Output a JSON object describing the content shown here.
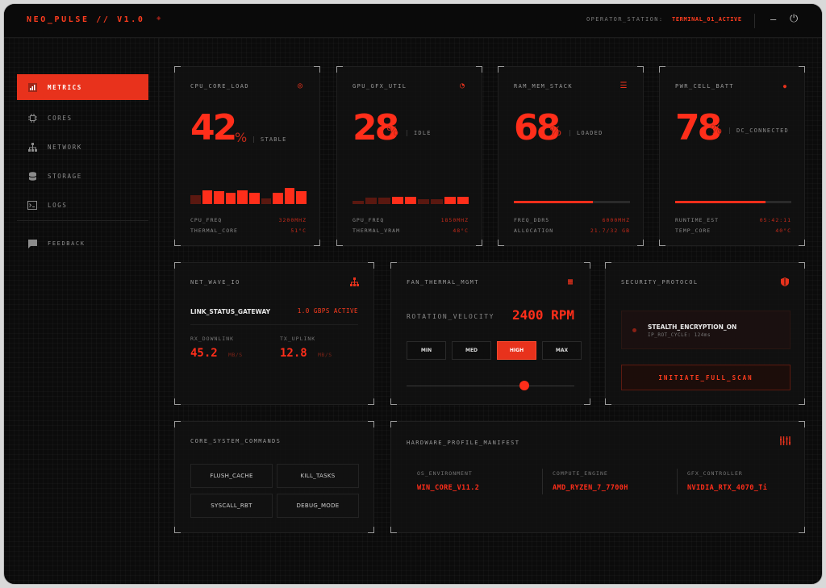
{
  "app": {
    "brand": "NEO_PULSE // V1.0",
    "operator_label": "OPERATOR_STATION:",
    "operator_value": "TERMINAL_01_ACTIVE"
  },
  "sidebar": {
    "items": [
      {
        "label": "METRICS",
        "icon": "signal-bars-icon",
        "active": true
      },
      {
        "label": "CORES",
        "icon": "chip-icon"
      },
      {
        "label": "NETWORK",
        "icon": "network-icon"
      },
      {
        "label": "STORAGE",
        "icon": "database-icon"
      },
      {
        "label": "LOGS",
        "icon": "terminal-icon"
      }
    ],
    "feedback": {
      "label": "FEEDBACK",
      "icon": "chat-icon"
    }
  },
  "metrics": {
    "cpu": {
      "title": "CPU_CORE_LOAD",
      "value": "42",
      "unit": "%",
      "status": "STABLE",
      "bars": [
        0.45,
        0.7,
        0.65,
        0.6,
        0.7,
        0.6,
        0.3,
        0.6,
        0.85,
        0.65
      ],
      "rows": [
        {
          "k": "CPU_FREQ",
          "v": "3200MHZ"
        },
        {
          "k": "THERMAL_CORE",
          "v": "51°C"
        }
      ]
    },
    "gpu": {
      "title": "GPU_GFX_UTIL",
      "value": "28",
      "unit": "%",
      "status": "IDLE",
      "bars": [
        0.2,
        0.4,
        0.4,
        0.45,
        0.45,
        0.3,
        0.3,
        0.45,
        0.45
      ],
      "rows": [
        {
          "k": "GPU_FREQ",
          "v": "1850MHZ"
        },
        {
          "k": "THERMAL_VRAM",
          "v": "48°C"
        }
      ]
    },
    "ram": {
      "title": "RAM_MEM_STACK",
      "value": "68",
      "unit": "%",
      "status": "LOADED",
      "progress": 0.68,
      "rows": [
        {
          "k": "FREQ_DDR5",
          "v": "6000MHZ"
        },
        {
          "k": "ALLOCATION",
          "v": "21.7/32 GB"
        }
      ]
    },
    "power": {
      "title": "PWR_CELL_BATT",
      "value": "78",
      "unit": "%",
      "status": "DC_CONNECTED",
      "progress": 0.78,
      "rows": [
        {
          "k": "RUNTIME_EST",
          "v": "05:42:11"
        },
        {
          "k": "TEMP_CORE",
          "v": "40°C"
        }
      ]
    }
  },
  "net": {
    "title": "NET_WAVE_IO",
    "link_label": "LINK_STATUS_GATEWAY",
    "link_rate": "1.0 GBPS ACTIVE",
    "rx_label": "RX_DOWNLINK",
    "rx_value": "45.2",
    "rx_unit": "MB/S",
    "tx_label": "TX_UPLINK",
    "tx_value": "12.8",
    "tx_unit": "MB/S"
  },
  "fan": {
    "title": "FAN_THERMAL_MGMT",
    "velocity_label": "ROTATION_VELOCITY",
    "rpm": "2400 RPM",
    "modes": [
      "MIN",
      "MED",
      "HIGH",
      "MAX"
    ],
    "active_mode": "HIGH",
    "slider_level": 0.7
  },
  "security": {
    "title": "SECURITY_PROTOCOL",
    "status_title": "STEALTH_ENCRYPTION_ON",
    "status_sub": "IP_ROT_CYCLE: 124ms",
    "scan_button": "INITIATE_FULL_SCAN"
  },
  "commands": {
    "title": "CORE_SYSTEM_COMMANDS",
    "buttons": [
      "FLUSH_CACHE",
      "KILL_TASKS",
      "SYSCALL_RBT",
      "DEBUG_MODE"
    ]
  },
  "hardware": {
    "title": "HARDWARE_PROFILE_MANIFEST",
    "items": [
      {
        "k": "OS_ENVIRONMENT",
        "v": "WIN_CORE_V11.2"
      },
      {
        "k": "COMPUTE_ENGINE",
        "v": "AMD_RYZEN_7_7700H"
      },
      {
        "k": "GFX_CONTROLLER",
        "v": "NVIDIA_RTX_4070_Ti"
      }
    ]
  },
  "colors": {
    "accent": "#ff2e1a",
    "background": "#0b0b0b"
  }
}
